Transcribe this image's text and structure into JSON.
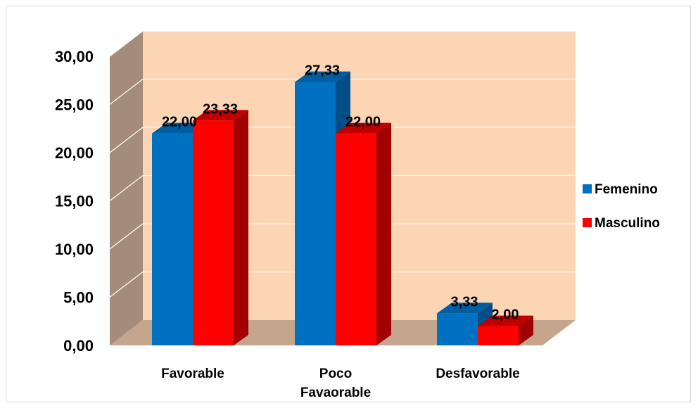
{
  "chart_data": {
    "type": "bar",
    "categories": [
      [
        "Favorable"
      ],
      [
        "Poco",
        "Favaorable"
      ],
      [
        "Desfavorable"
      ]
    ],
    "series": [
      {
        "name": "Femenino",
        "values": [
          22.0,
          27.33,
          3.33
        ],
        "labels": [
          "22,00",
          "27,33",
          "3,33"
        ],
        "color": "#0070C0"
      },
      {
        "name": "Masculino",
        "values": [
          23.33,
          22.0,
          2.0
        ],
        "labels": [
          "23,33",
          "22,00",
          "2,00"
        ],
        "color": "#FF0000"
      }
    ],
    "y_ticks": [
      "0,00",
      "5,00",
      "10,00",
      "15,00",
      "20,00",
      "25,00",
      "30,00"
    ],
    "ylim": [
      0,
      30
    ],
    "grid": true,
    "legend_position": "right",
    "colors": {
      "back_wall": "#FCD5B5",
      "side_wall": "#A58B79",
      "floor": "#C4A68E",
      "femenino_side": "#004E87",
      "femenino_top": "#005DA0",
      "masculino_side": "#A00000",
      "masculino_top": "#C00000"
    }
  }
}
